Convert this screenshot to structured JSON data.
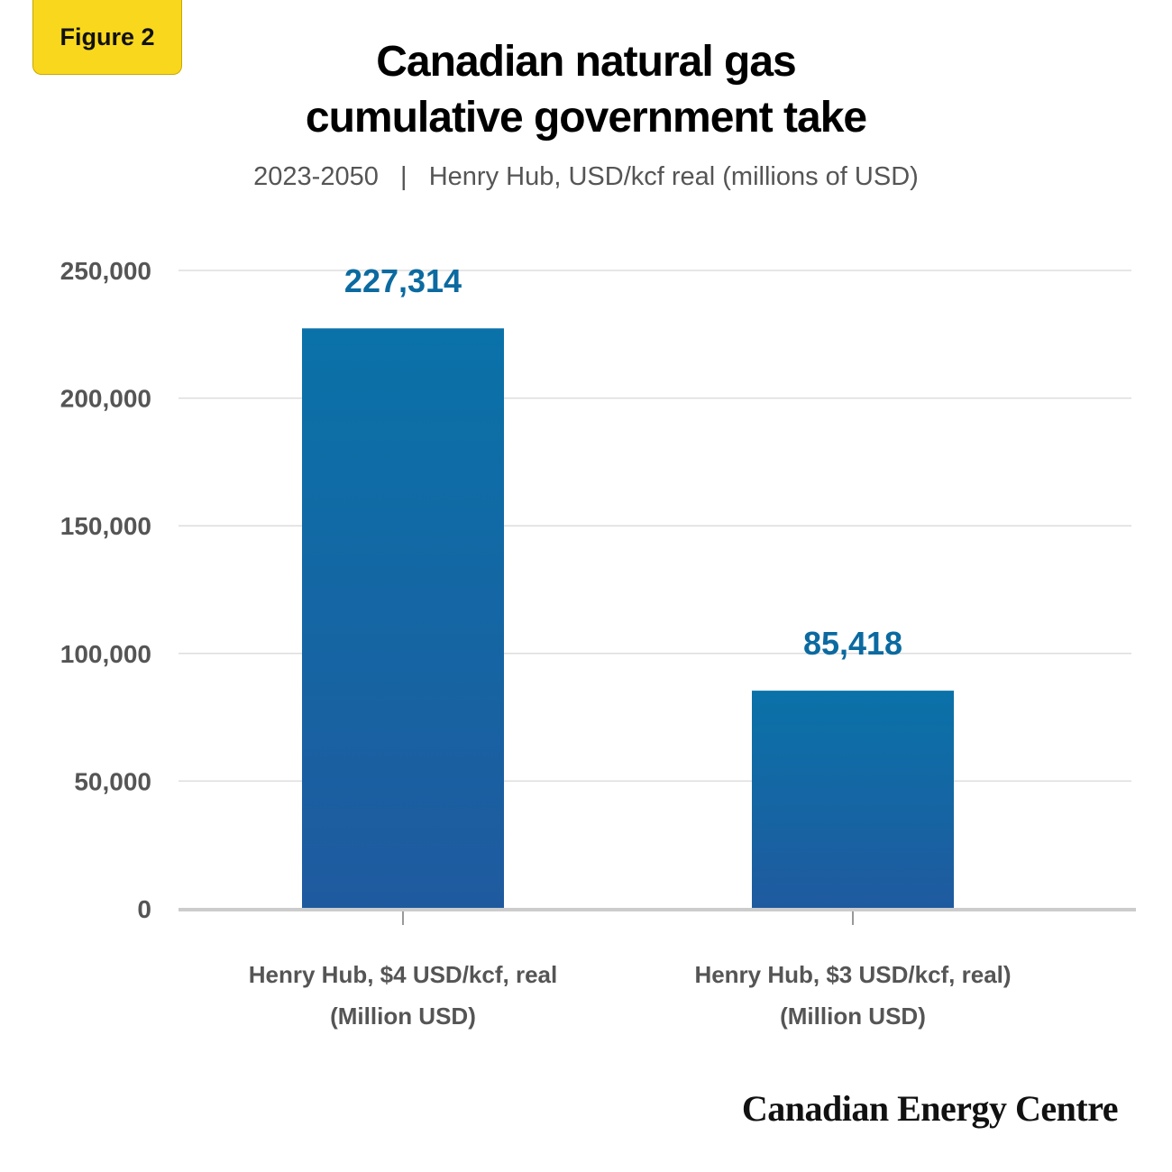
{
  "badge": "Figure 2",
  "title_lines": [
    "Canadian natural gas",
    "cumulative government take"
  ],
  "subtitle": "2023-2050   |   Henry Hub, USD/kcf real (millions of USD)",
  "brand": "Canadian Energy Centre",
  "colors": {
    "bar_top": "#0a72a8",
    "bar_bottom": "#1f5a9f",
    "data_label": "#0b6aa0",
    "grid": "#dddddd",
    "axis": "#cccccc",
    "badge": "#f9d71c"
  },
  "chart_data": {
    "type": "bar",
    "title": "Canadian natural gas cumulative government take",
    "subtitle": "2023-2050 | Henry Hub, USD/kcf real (millions of USD)",
    "categories": [
      [
        "Henry Hub, $4 USD/kcf, real",
        "(Million USD)"
      ],
      [
        "Henry Hub, $3 USD/kcf, real)",
        "(Million USD)"
      ]
    ],
    "values": [
      227314,
      85418
    ],
    "value_labels": [
      "227,314",
      "85,418"
    ],
    "yticks": [
      0,
      50000,
      100000,
      150000,
      200000,
      250000
    ],
    "ytick_labels": [
      "0",
      "50,000",
      "100,000",
      "150,000",
      "200,000",
      "250,000"
    ],
    "ylim": [
      0,
      250000
    ],
    "xlabel": "",
    "ylabel": "",
    "grid": true,
    "legend": "none"
  }
}
